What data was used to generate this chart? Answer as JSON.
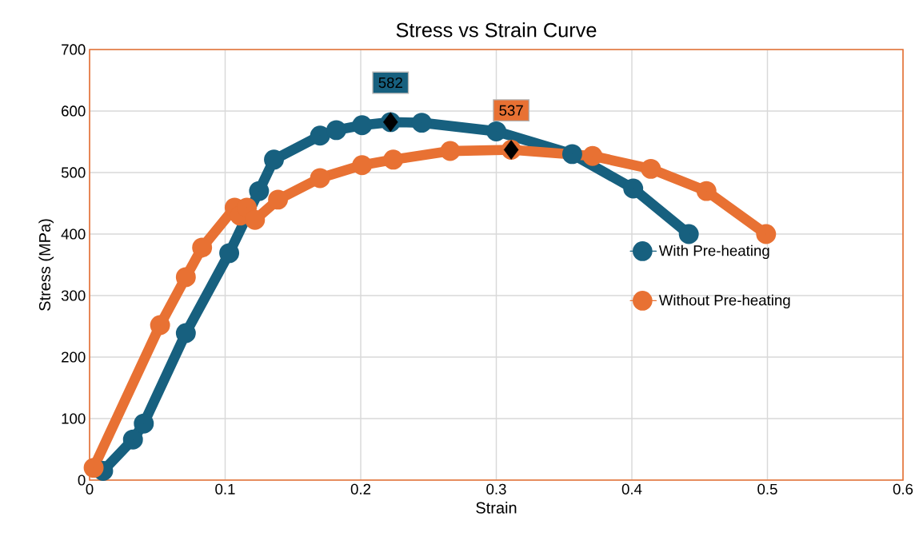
{
  "chart_data": {
    "type": "line",
    "title": "Stress vs Strain Curve",
    "xlabel": "Strain",
    "ylabel": "Stress (MPa)",
    "xlim": [
      0,
      0.6
    ],
    "ylim": [
      0,
      700
    ],
    "xticks": [
      0,
      0.1,
      0.2,
      0.3,
      0.4,
      0.5,
      0.6
    ],
    "yticks": [
      0,
      100,
      200,
      300,
      400,
      500,
      600,
      700
    ],
    "grid": true,
    "legend": "right",
    "marker": "circle",
    "line_style": "solid",
    "series": [
      {
        "name": "With Pre-heating",
        "color": "#17607f",
        "x": [
          0.01,
          0.032,
          0.04,
          0.071,
          0.103,
          0.125,
          0.136,
          0.17,
          0.182,
          0.201,
          0.222,
          0.245,
          0.3,
          0.356,
          0.401,
          0.442
        ],
        "values": [
          15,
          66,
          92,
          239,
          369,
          470,
          521,
          560,
          569,
          577,
          582,
          581,
          567,
          530,
          474,
          400
        ]
      },
      {
        "name": "Without Pre-heating",
        "color": "#e87133",
        "x": [
          0.003,
          0.052,
          0.071,
          0.083,
          0.107,
          0.111,
          0.116,
          0.122,
          0.139,
          0.17,
          0.201,
          0.224,
          0.266,
          0.311,
          0.371,
          0.414,
          0.455,
          0.499
        ],
        "values": [
          20,
          252,
          330,
          378,
          443,
          430,
          443,
          423,
          456,
          491,
          512,
          521,
          535,
          537,
          527,
          506,
          470,
          400
        ]
      },
      {
        "type": "scatter",
        "marker": "diamond",
        "color": "#000000",
        "x": [
          0.222
        ],
        "values": [
          582
        ],
        "value_labels": [
          "582"
        ]
      },
      {
        "type": "scatter",
        "marker": "diamond",
        "color": "#000000",
        "x": [
          0.311
        ],
        "values": [
          537
        ],
        "value_labels": [
          "537"
        ]
      }
    ]
  }
}
